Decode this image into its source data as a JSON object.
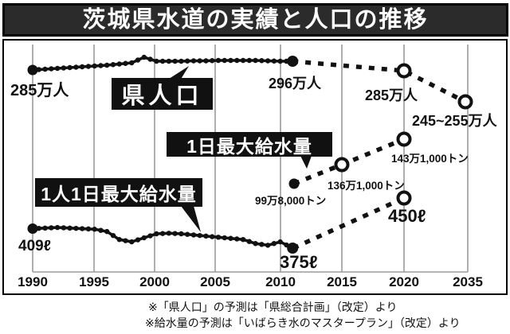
{
  "title": "茨城県水道の実績と人口の推移",
  "chart_data": {
    "type": "line",
    "x_ticks": [
      "1990",
      "1995",
      "2000",
      "2005",
      "2010",
      "2015",
      "2020",
      "2035"
    ],
    "x_axis_note": "years; 2035 compressed next to 2020",
    "grid": "vertical-gridlines-on",
    "series": [
      {
        "name": "県人口（実績）",
        "unit": "万人",
        "style": "solid-with-dots",
        "years": [
          1990,
          1991,
          1992,
          1993,
          1994,
          1995,
          1996,
          1997,
          1998,
          1999,
          2000,
          2001,
          2002,
          2003,
          2004,
          2005,
          2006,
          2007,
          2008,
          2009,
          2010,
          2011
        ],
        "values": [
          285,
          286,
          287,
          288,
          289,
          290,
          291,
          292.5,
          294,
          301,
          296,
          296,
          296,
          296.5,
          296.5,
          297,
          297,
          297,
          297,
          296.5,
          296,
          296
        ],
        "start_label": "285万人",
        "end_label": "296万人"
      },
      {
        "name": "県人口（予測）",
        "unit": "万人",
        "style": "dotted-open-circles",
        "years": [
          2011,
          2020,
          2035
        ],
        "values": [
          296,
          285,
          "245~255"
        ],
        "labels": [
          "296万人",
          "285万人",
          "245~255万人"
        ]
      },
      {
        "name": "1日最大給水量",
        "unit": "トン",
        "style": "dot-then-dotted-open-circles",
        "years": [
          2011,
          2015,
          2020
        ],
        "values": [
          998000,
          1361000,
          1431000
        ],
        "labels": [
          "99万8,000トン",
          "136万1,000トン",
          "143万1,000トン"
        ]
      },
      {
        "name": "1人1日最大給水量（実績）",
        "unit": "ℓ",
        "style": "solid-with-dots",
        "years": [
          1990,
          1991,
          1992,
          1993,
          1994,
          1995,
          1996,
          1997,
          1998,
          1999,
          2000,
          2001,
          2002,
          2003,
          2004,
          2005,
          2006,
          2007,
          2008,
          2009,
          2010,
          2011
        ],
        "values": [
          409,
          410,
          411,
          410,
          409,
          408,
          404,
          390,
          386,
          393,
          400,
          401,
          400,
          398,
          396,
          394,
          392,
          390,
          383,
          380,
          386,
          375
        ],
        "start_label": "409ℓ",
        "end_label": "375ℓ"
      },
      {
        "name": "1人1日最大給水量（予測）",
        "unit": "ℓ",
        "style": "dotted-open-circles",
        "years": [
          2011,
          2020
        ],
        "values": [
          375,
          450
        ],
        "labels": [
          "375ℓ",
          "450ℓ"
        ]
      }
    ]
  },
  "labels": {
    "pop_series": "県人口",
    "water_series": "1日最大給水量",
    "cap_series": "1人1日最大給水量",
    "pop_start": "285万人",
    "pop_end": "296万人",
    "pop_2020": "285万人",
    "pop_2035": "245~255万人",
    "water_2011": "99万8,000トン",
    "water_2015": "136万1,000トン",
    "water_2020": "143万1,000トン",
    "cap_start": "409ℓ",
    "cap_end": "375ℓ",
    "cap_2020": "450ℓ"
  },
  "footnotes": [
    "※「県人口」の予測は「県総合計画」（改定）より",
    "※給水量の予測は「いばらき水のマスタープラン」（改定）より"
  ],
  "colors": {
    "ink": "#111111",
    "banner_bg": "#2b2b2b",
    "banner_text": "#ffffff",
    "gridline": "#9b9b9b",
    "background": "#ffffff"
  }
}
